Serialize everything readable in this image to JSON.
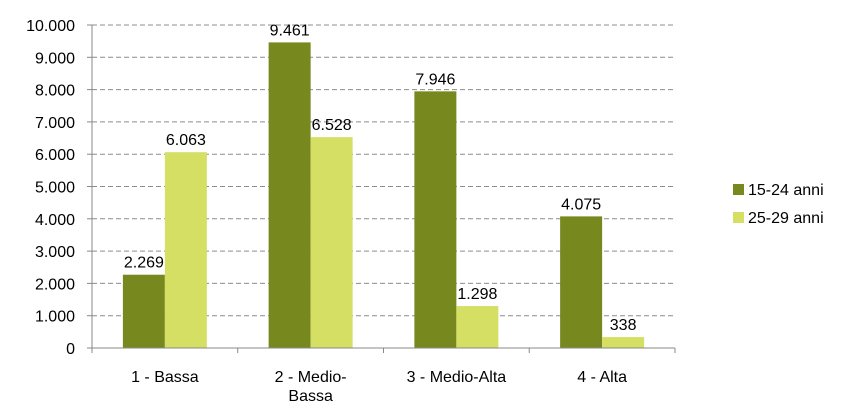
{
  "chart_data": {
    "type": "bar",
    "categories": [
      "1 - Bassa",
      "2 - Medio-Bassa",
      "3 - Medio-Alta",
      "4 - Alta"
    ],
    "category_lines": [
      [
        "1 - Bassa"
      ],
      [
        "2 - Medio-",
        "Bassa"
      ],
      [
        "3 - Medio-Alta"
      ],
      [
        "4 - Alta"
      ]
    ],
    "series": [
      {
        "name": "15-24 anni",
        "values": [
          2269,
          9461,
          7946,
          4075
        ],
        "labels": [
          "2.269",
          "9.461",
          "7.946",
          "4.075"
        ],
        "color": "#77881f"
      },
      {
        "name": "25-29 anni",
        "values": [
          6063,
          6528,
          1298,
          338
        ],
        "labels": [
          "6.063",
          "6.528",
          "1.298",
          "338"
        ],
        "color": "#d5df64"
      }
    ],
    "ylim": [
      0,
      10000
    ],
    "yticks": [
      0,
      1000,
      2000,
      3000,
      4000,
      5000,
      6000,
      7000,
      8000,
      9000,
      10000
    ],
    "ytick_labels": [
      "0",
      "1.000",
      "2.000",
      "3.000",
      "4.000",
      "5.000",
      "6.000",
      "7.000",
      "8.000",
      "9.000",
      "10.000"
    ],
    "grid": "dashed",
    "legend_position": "right",
    "title": "",
    "xlabel": "",
    "ylabel": ""
  }
}
